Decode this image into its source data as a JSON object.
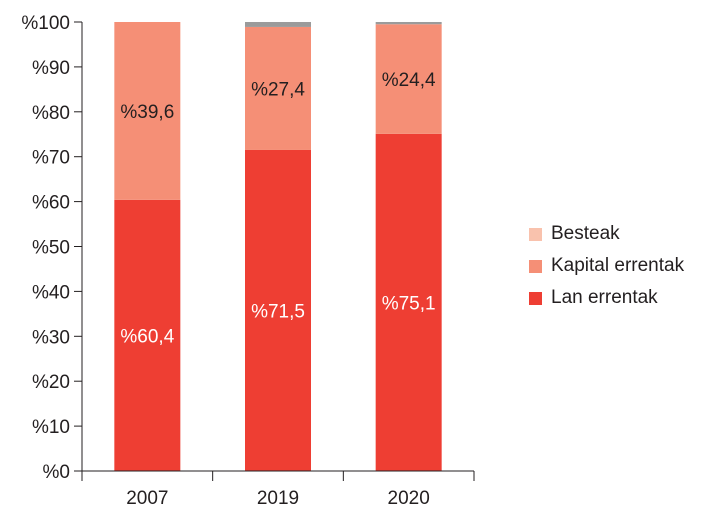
{
  "chart_data": {
    "type": "bar",
    "stacked": true,
    "categories": [
      "2007",
      "2019",
      "2020"
    ],
    "series": [
      {
        "name": "Lan errentak",
        "color": "#ee3e33",
        "values": [
          60.4,
          71.5,
          75.1
        ],
        "labels": [
          "%60,4",
          "%71,5",
          "%75,1"
        ],
        "label_color": "#ffffff"
      },
      {
        "name": "Kapital errentak",
        "color": "#f58f76",
        "values": [
          39.6,
          27.4,
          24.4
        ],
        "labels": [
          "%39,6",
          "%27,4",
          "%24,4"
        ],
        "label_color": "#231f20"
      },
      {
        "name": "Besteak",
        "color": "#9b9b9b",
        "values": [
          0.0,
          1.1,
          0.5
        ],
        "labels": [
          "",
          "",
          ""
        ],
        "label_color": "#231f20"
      }
    ],
    "ylim": [
      0,
      100
    ],
    "yticks": [
      0,
      10,
      20,
      30,
      40,
      50,
      60,
      70,
      80,
      90,
      100
    ],
    "ytick_labels": [
      "%0",
      "%10",
      "%20",
      "%30",
      "%40",
      "%50",
      "%60",
      "%70",
      "%80",
      "%90",
      "%100"
    ],
    "grid": false,
    "title": "",
    "xlabel": "",
    "ylabel": ""
  },
  "legend": {
    "placement": "right",
    "items": [
      {
        "label": "Besteak",
        "color": "#f9c2ad"
      },
      {
        "label": "Kapital errentak",
        "color": "#f58f76"
      },
      {
        "label": "Lan errentak",
        "color": "#ee3e33"
      }
    ]
  }
}
